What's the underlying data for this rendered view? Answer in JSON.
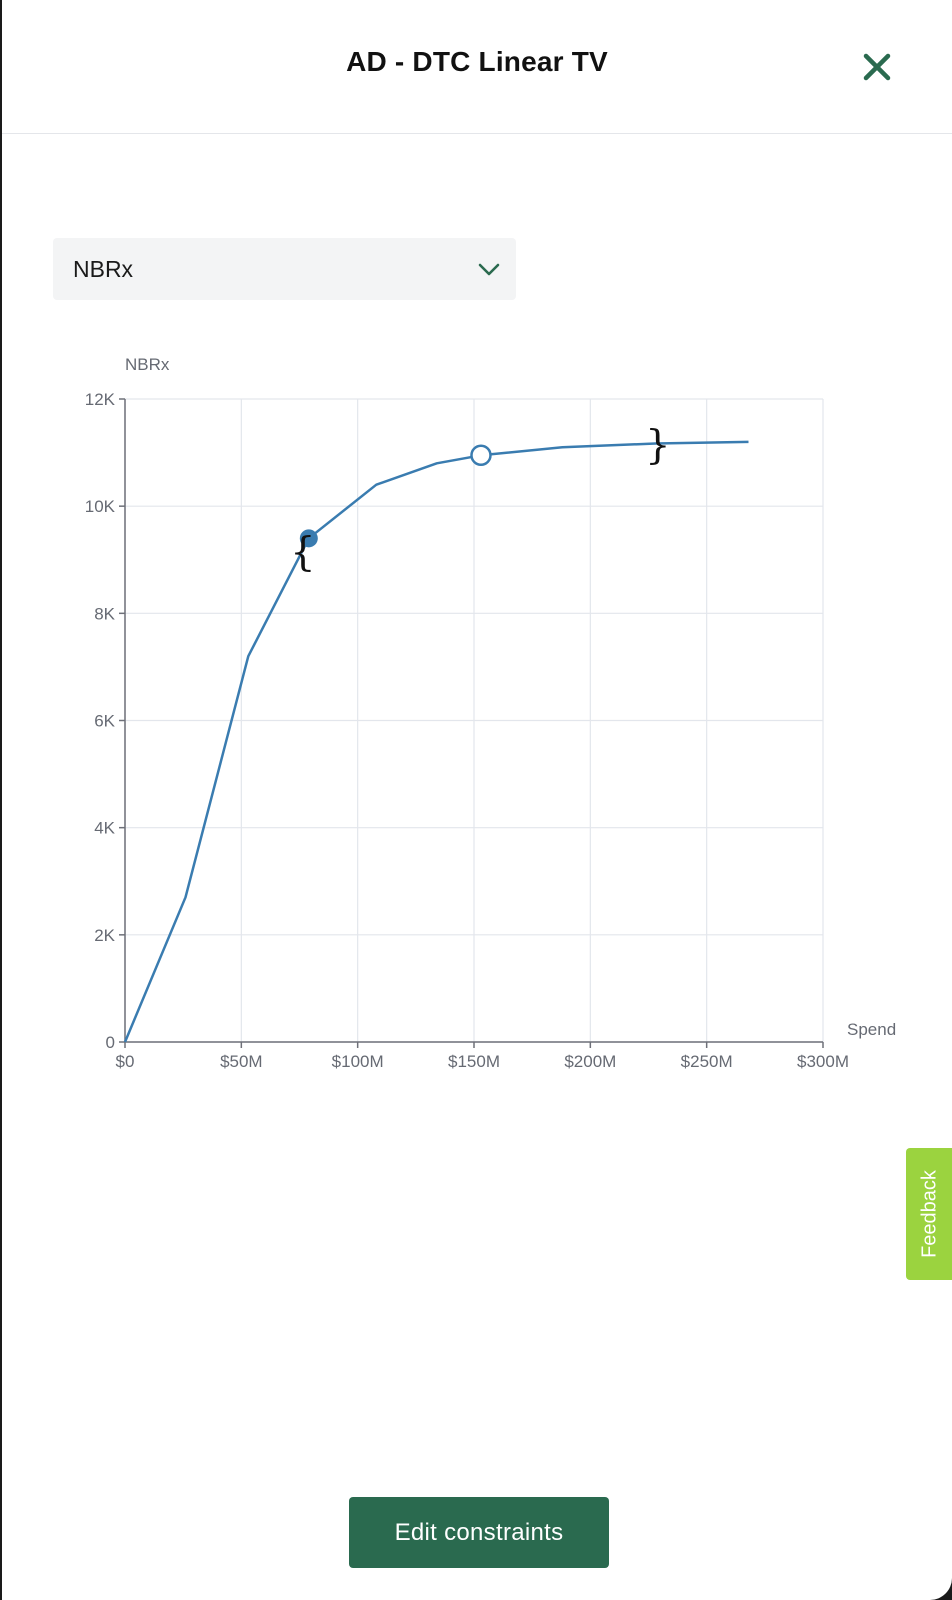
{
  "modal": {
    "title": "AD - DTC Linear TV",
    "close_icon": "close-x-icon"
  },
  "metric_select": {
    "selected": "NBRx",
    "chevron_icon": "chevron-down-icon"
  },
  "feedback": {
    "label": "Feedback",
    "color": "#9bd33f"
  },
  "actions": {
    "edit_constraints": "Edit constraints"
  },
  "colors": {
    "accent": "#2a6a4f",
    "curve": "#3a7cb0"
  },
  "chart_data": {
    "type": "line",
    "ylabel": "NBRx",
    "xlabel": "Spend",
    "xlim": [
      0,
      300000000
    ],
    "ylim": [
      0,
      12000
    ],
    "x_ticks": [
      0,
      50000000,
      100000000,
      150000000,
      200000000,
      250000000,
      300000000
    ],
    "x_tick_labels": [
      "$0",
      "$50M",
      "$100M",
      "$150M",
      "$200M",
      "$250M",
      "$300M"
    ],
    "y_ticks": [
      0,
      2000,
      4000,
      6000,
      8000,
      10000,
      12000
    ],
    "y_tick_labels": [
      "0",
      "2K",
      "4K",
      "6K",
      "8K",
      "10K",
      "12K"
    ],
    "grid": true,
    "series": [
      {
        "x": [
          0,
          26000000,
          53000000,
          79000000,
          108000000,
          134000000,
          153000000,
          188000000,
          228000000,
          268000000
        ],
        "y": [
          0,
          2700,
          7200,
          9400,
          10400,
          10800,
          10950,
          11100,
          11170,
          11200
        ]
      }
    ],
    "markers": [
      {
        "type": "filled",
        "x": 79000000,
        "y": 9400
      },
      {
        "type": "hollow",
        "x": 153000000,
        "y": 10950
      }
    ],
    "bracket_annotations": [
      {
        "symbol": "{",
        "x": 79000000,
        "y": 9150
      },
      {
        "symbol": "}",
        "x": 229000000,
        "y": 11150
      }
    ]
  }
}
